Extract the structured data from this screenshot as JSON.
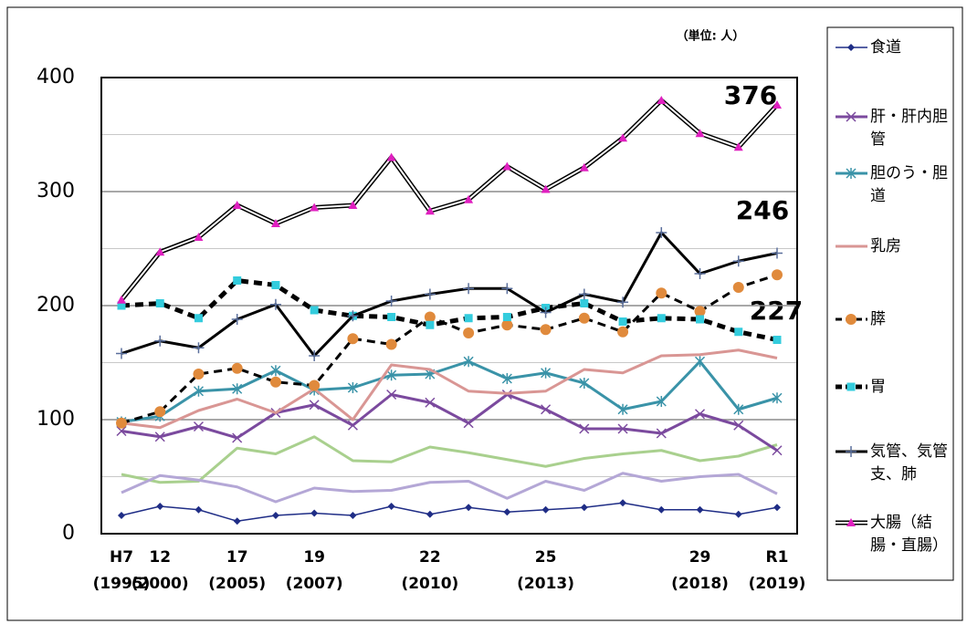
{
  "chart_data": {
    "type": "line",
    "unit_note": "（単位: 人）",
    "annotations": [
      "376",
      "246",
      "227"
    ],
    "categories": [
      "H7",
      "12",
      null,
      "17",
      null,
      "19",
      null,
      null,
      "22",
      null,
      null,
      "25",
      null,
      null,
      null,
      "29",
      null,
      "R1"
    ],
    "category_years": [
      "(1995)",
      "(2000)",
      null,
      "(2005)",
      null,
      "(2007)",
      null,
      null,
      "(2010)",
      null,
      null,
      "(2013)",
      null,
      null,
      null,
      "(2018)",
      null,
      "(2019)"
    ],
    "ylim": [
      0,
      400
    ],
    "yticks": [
      0,
      100,
      200,
      300,
      400
    ],
    "minor_yticks": [
      50,
      150,
      250,
      350
    ],
    "grid": true,
    "legend": "right",
    "series": [
      {
        "color": "#a9d08e",
        "marker": "none",
        "values": [
          52,
          45,
          46,
          75,
          70,
          85,
          64,
          63,
          76,
          71,
          65,
          59,
          66,
          70,
          73,
          64,
          68,
          78
        ]
      },
      {
        "color": "#b4a7d6",
        "marker": "none",
        "values": [
          36,
          51,
          47,
          41,
          28,
          40,
          37,
          38,
          45,
          46,
          31,
          46,
          38,
          53,
          46,
          50,
          52,
          35
        ]
      },
      {
        "name": "食道",
        "color": "#1f2d86",
        "marker": "diamond",
        "marker_color": "#1f2d86",
        "width": 1.5,
        "values": [
          16,
          24,
          21,
          11,
          16,
          18,
          16,
          24,
          17,
          23,
          19,
          21,
          23,
          27,
          21,
          21,
          17,
          23
        ]
      },
      {
        "name": "肝・肝内胆管",
        "color": "#7b4a9e",
        "marker": "x",
        "marker_color": "#7b4a9e",
        "width": 3,
        "values": [
          90,
          85,
          94,
          84,
          106,
          113,
          95,
          122,
          115,
          97,
          122,
          109,
          92,
          92,
          88,
          105,
          95,
          73
        ]
      },
      {
        "name": "胆のう・胆道",
        "color": "#3a93a8",
        "marker": "star",
        "marker_color": "#3a93a8",
        "width": 3,
        "values": [
          98,
          103,
          125,
          127,
          143,
          126,
          128,
          139,
          140,
          151,
          136,
          141,
          132,
          109,
          116,
          151,
          109,
          119
        ]
      },
      {
        "name": "乳房",
        "color": "#d99694",
        "marker": "none",
        "width": 3,
        "values": [
          97,
          93,
          108,
          118,
          106,
          127,
          100,
          148,
          144,
          125,
          123,
          125,
          144,
          141,
          156,
          157,
          161,
          154
        ]
      },
      {
        "name": "膵",
        "color": "#000000",
        "dash": true,
        "marker": "circle",
        "marker_color": "#e08a3c",
        "width": 3,
        "values": [
          97,
          107,
          140,
          145,
          133,
          130,
          171,
          166,
          190,
          176,
          183,
          179,
          189,
          177,
          211,
          195,
          216,
          227
        ]
      },
      {
        "name": "胃",
        "color": "#000000",
        "dash": true,
        "marker": "square",
        "marker_color": "#33ccdd",
        "width": 5,
        "values": [
          200,
          202,
          189,
          222,
          218,
          196,
          191,
          190,
          183,
          189,
          190,
          198,
          202,
          186,
          189,
          188,
          177,
          170
        ]
      },
      {
        "name": "気管、気管支、肺",
        "color": "#000000",
        "marker": "plus",
        "marker_color": "#5a6f9c",
        "width": 3,
        "values": [
          158,
          169,
          163,
          188,
          201,
          156,
          191,
          204,
          210,
          215,
          215,
          194,
          210,
          203,
          264,
          228,
          239,
          246
        ]
      },
      {
        "name": "大腸（結腸・直腸）",
        "color": "#000000",
        "double": true,
        "marker": "triangle",
        "marker_color": "#e020c0",
        "width": 5,
        "values": [
          205,
          247,
          260,
          288,
          272,
          286,
          288,
          330,
          283,
          293,
          322,
          302,
          321,
          347,
          380,
          351,
          339,
          376
        ]
      }
    ]
  }
}
